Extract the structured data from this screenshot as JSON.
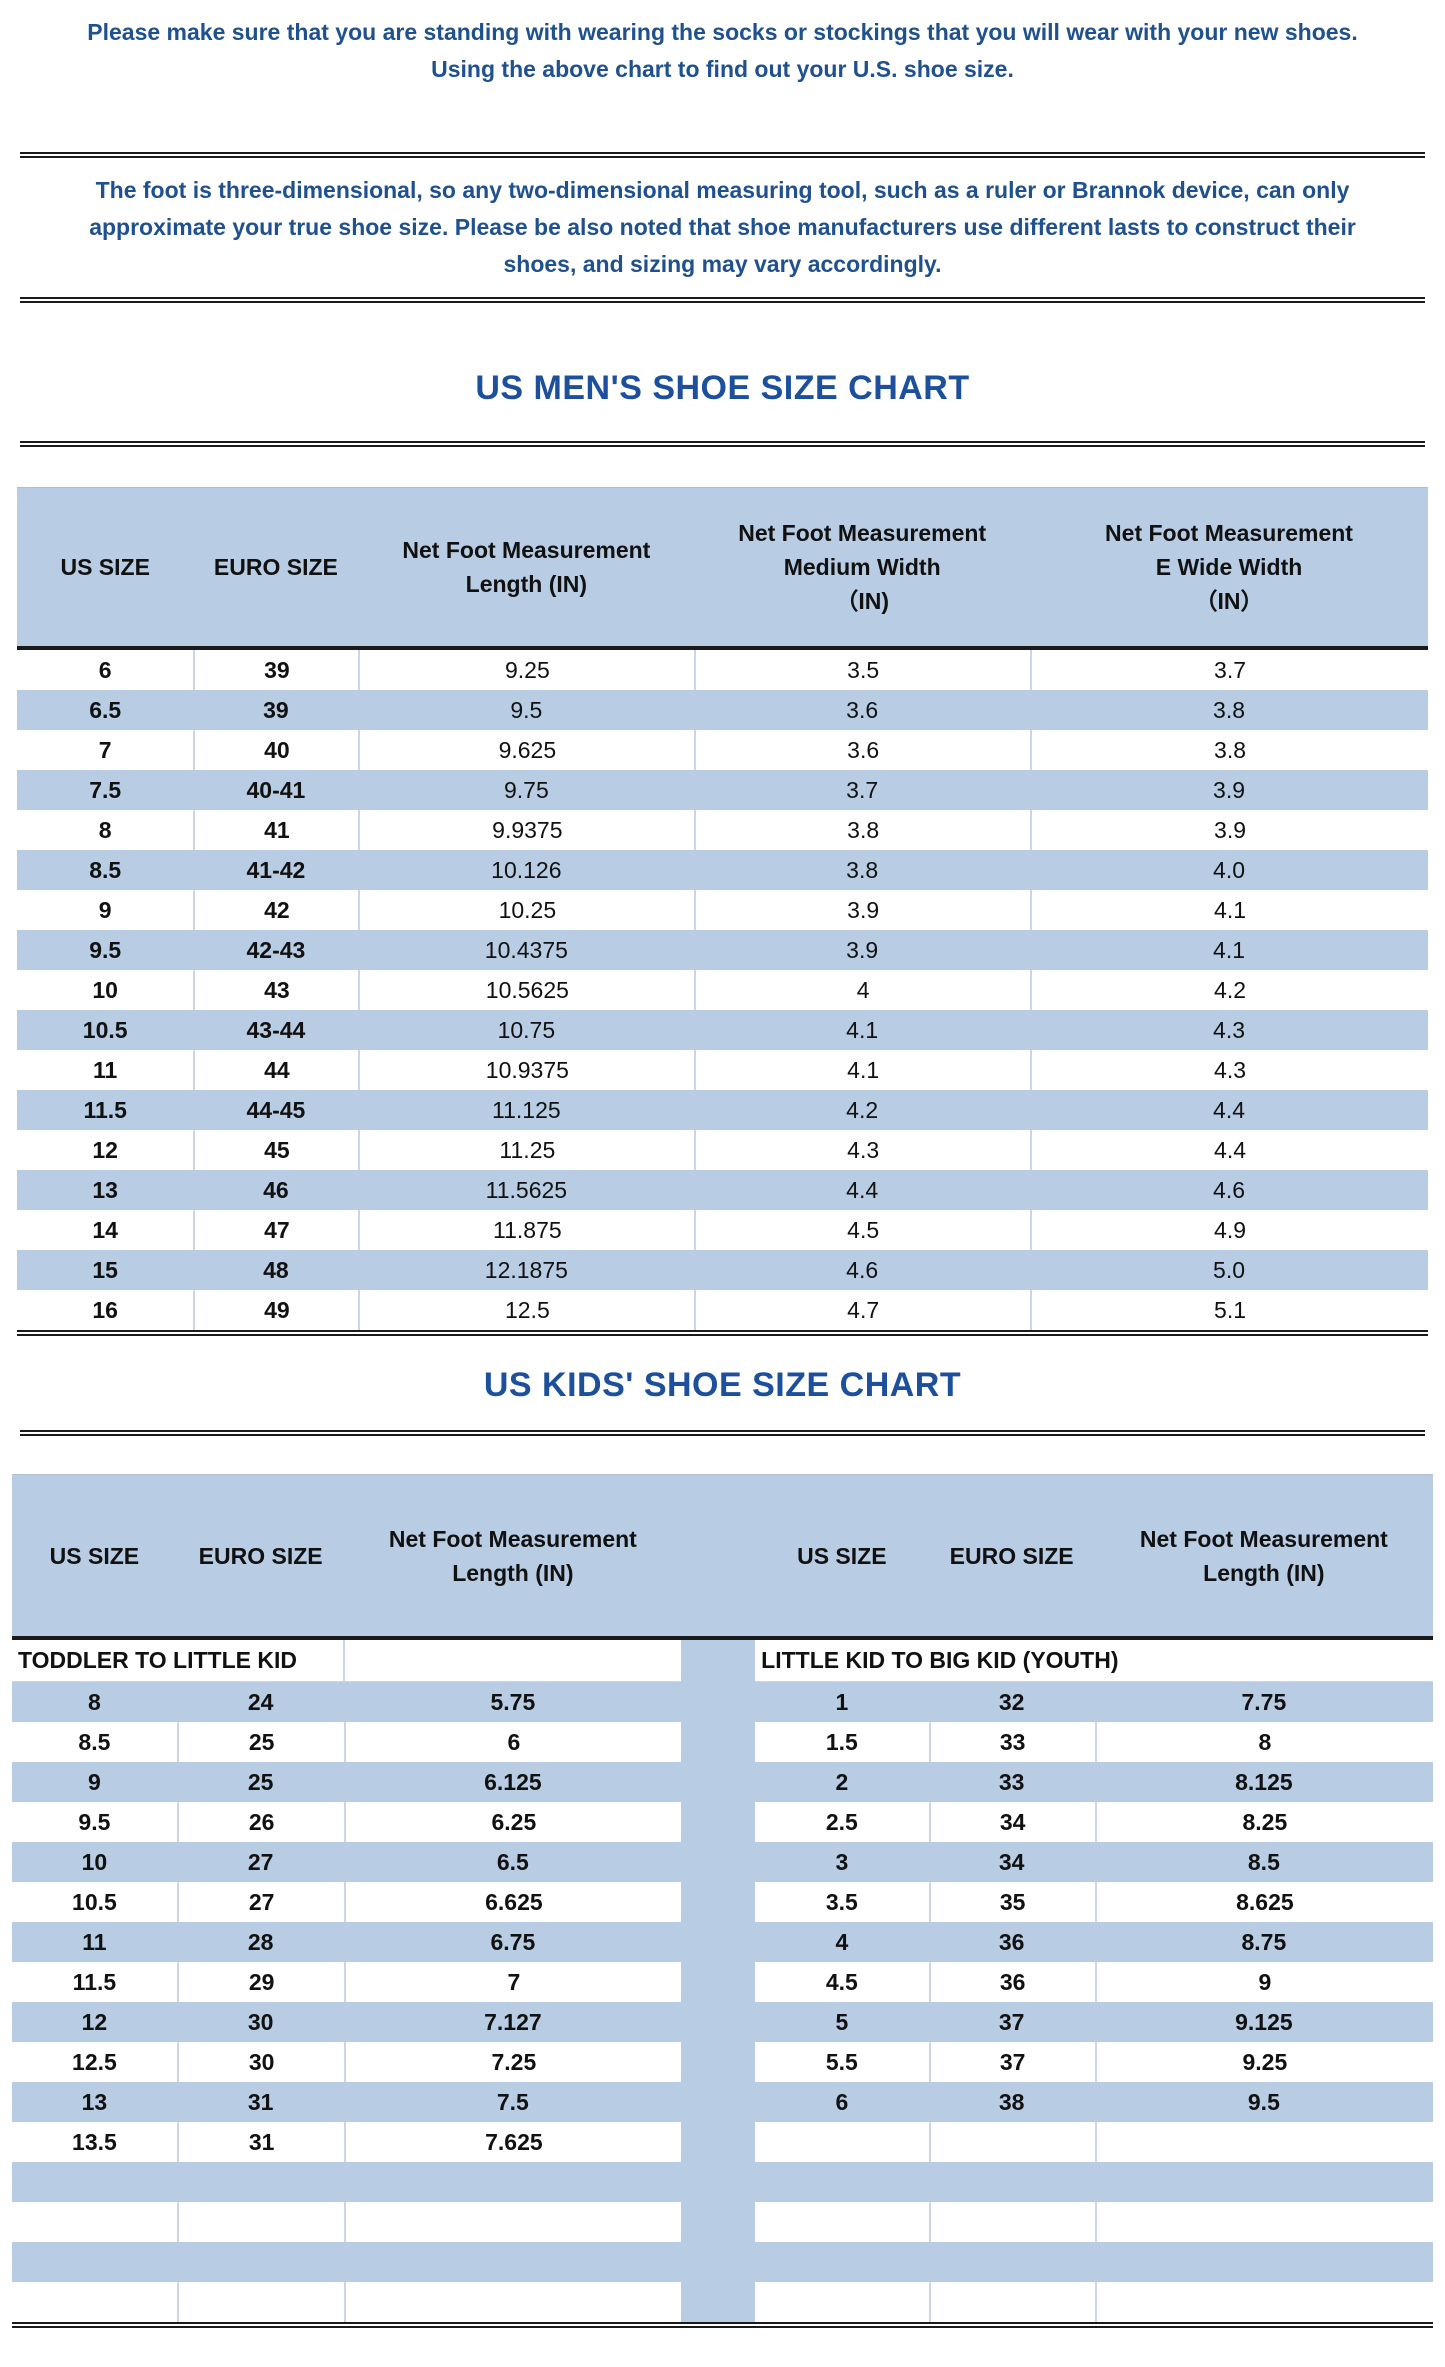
{
  "intro": {
    "para1_lines": [
      "Please make sure that you are standing with wearing the socks or stockings that you will wear with your new shoes.",
      "Using the above chart to find out your U.S. shoe size."
    ],
    "para2_lines": [
      "The foot is three-dimensional, so any two-dimensional measuring tool, such as a ruler or Brannok device, can only",
      "approximate your true shoe size. Please be also noted that shoe manufacturers use different lasts to construct their",
      "shoes, and sizing may vary accordingly."
    ]
  },
  "mens_chart": {
    "title": "US MEN'S SHOE SIZE CHART",
    "headers": [
      {
        "lines": [
          "US SIZE"
        ]
      },
      {
        "lines": [
          "EURO SIZE"
        ]
      },
      {
        "lines": [
          "Net Foot Measurement",
          "Length (IN)"
        ]
      },
      {
        "lines": [
          "Net Foot Measurement",
          "Medium Width",
          "（IN)"
        ]
      },
      {
        "lines": [
          "Net Foot Measurement",
          "E Wide Width",
          "（IN）"
        ]
      }
    ],
    "rows": [
      [
        "6",
        "39",
        "9.25",
        "3.5",
        "3.7"
      ],
      [
        "6.5",
        "39",
        "9.5",
        "3.6",
        "3.8"
      ],
      [
        "7",
        "40",
        "9.625",
        "3.6",
        "3.8"
      ],
      [
        "7.5",
        "40-41",
        "9.75",
        "3.7",
        "3.9"
      ],
      [
        "8",
        "41",
        "9.9375",
        "3.8",
        "3.9"
      ],
      [
        "8.5",
        "41-42",
        "10.126",
        "3.8",
        "4.0"
      ],
      [
        "9",
        "42",
        "10.25",
        "3.9",
        "4.1"
      ],
      [
        "9.5",
        "42-43",
        "10.4375",
        "3.9",
        "4.1"
      ],
      [
        "10",
        "43",
        "10.5625",
        "4",
        "4.2"
      ],
      [
        "10.5",
        "43-44",
        "10.75",
        "4.1",
        "4.3"
      ],
      [
        "11",
        "44",
        "10.9375",
        "4.1",
        "4.3"
      ],
      [
        "11.5",
        "44-45",
        "11.125",
        "4.2",
        "4.4"
      ],
      [
        "12",
        "45",
        "11.25",
        "4.3",
        "4.4"
      ],
      [
        "13",
        "46",
        "11.5625",
        "4.4",
        "4.6"
      ],
      [
        "14",
        "47",
        "11.875",
        "4.5",
        "4.9"
      ],
      [
        "15",
        "48",
        "12.1875",
        "4.6",
        "5.0"
      ],
      [
        "16",
        "49",
        "12.5",
        "4.7",
        "5.1"
      ]
    ]
  },
  "kids_chart": {
    "title": "US KIDS' SHOE SIZE CHART",
    "total_body_rows": 16,
    "left": {
      "section_label": "TODDLER TO LITTLE KID",
      "headers": [
        {
          "lines": [
            "US SIZE"
          ]
        },
        {
          "lines": [
            "EURO SIZE"
          ]
        },
        {
          "lines": [
            "Net Foot Measurement",
            "Length (IN)"
          ]
        }
      ],
      "rows": [
        [
          "8",
          "24",
          "5.75"
        ],
        [
          "8.5",
          "25",
          "6"
        ],
        [
          "9",
          "25",
          "6.125"
        ],
        [
          "9.5",
          "26",
          "6.25"
        ],
        [
          "10",
          "27",
          "6.5"
        ],
        [
          "10.5",
          "27",
          "6.625"
        ],
        [
          "11",
          "28",
          "6.75"
        ],
        [
          "11.5",
          "29",
          "7"
        ],
        [
          "12",
          "30",
          "7.127"
        ],
        [
          "12.5",
          "30",
          "7.25"
        ],
        [
          "13",
          "31",
          "7.5"
        ],
        [
          "13.5",
          "31",
          "7.625"
        ]
      ]
    },
    "right": {
      "section_label": "LITTLE KID TO BIG KID (YOUTH)",
      "headers": [
        {
          "lines": [
            "US SIZE"
          ]
        },
        {
          "lines": [
            "EURO SIZE"
          ]
        },
        {
          "lines": [
            "Net Foot Measurement",
            "Length (IN)"
          ]
        }
      ],
      "rows": [
        [
          "1",
          "32",
          "7.75"
        ],
        [
          "1.5",
          "33",
          "8"
        ],
        [
          "2",
          "33",
          "8.125"
        ],
        [
          "2.5",
          "34",
          "8.25"
        ],
        [
          "3",
          "34",
          "8.5"
        ],
        [
          "3.5",
          "35",
          "8.625"
        ],
        [
          "4",
          "36",
          "8.75"
        ],
        [
          "4.5",
          "36",
          "9"
        ],
        [
          "5",
          "37",
          "9.125"
        ],
        [
          "5.5",
          "37",
          "9.25"
        ],
        [
          "6",
          "38",
          "9.5"
        ]
      ]
    }
  },
  "colors": {
    "band_blue": "#b8cce4",
    "title_blue": "#1c4f9c",
    "body_text_blue": "#20518f",
    "cell_border": "#c9d7eb",
    "rule_black": "#1a1a1a"
  }
}
